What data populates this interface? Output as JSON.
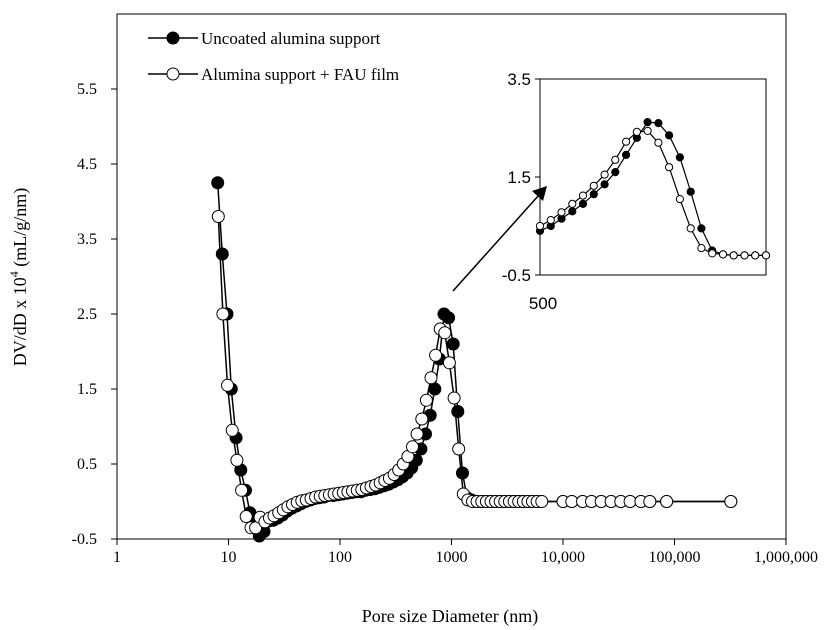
{
  "chart_data": {
    "type": "scatter",
    "title": "",
    "xlabel": "Pore size Diameter (nm)",
    "ylabel_main": "DV/dD x 10",
    "ylabel_sup": "4",
    "ylabel_unit": " (mL/g/nm)",
    "x_scale": "log",
    "xlim": [
      1,
      1000000
    ],
    "ylim": [
      -0.5,
      6.5
    ],
    "x_ticks": [
      1,
      10,
      100,
      1000,
      10000,
      100000,
      1000000
    ],
    "x_tick_labels": [
      "1",
      "10",
      "100",
      "1000",
      "10,000",
      "100,000",
      "1,000,000"
    ],
    "y_ticks": [
      -0.5,
      0.5,
      1.5,
      2.5,
      3.5,
      4.5,
      5.5
    ],
    "y_tick_labels": [
      "-0.5",
      "0.5",
      "1.5",
      "2.5",
      "3.5",
      "4.5",
      "5.5"
    ],
    "grid": false,
    "legend_position": "top-left",
    "series": [
      {
        "name": "Uncoated alumina support",
        "marker": "filled-circle",
        "color": "#000000",
        "x": [
          8.0,
          8.8,
          9.7,
          10.6,
          11.7,
          12.9,
          14.2,
          15.6,
          17.2,
          18.9,
          20.8,
          22.9,
          25.2,
          27.7,
          30.5,
          33.5,
          36.9,
          40.6,
          44.6,
          49.1,
          54.0,
          59.4,
          65.3,
          71.9,
          79.1,
          87.0,
          95.7,
          105.2,
          115.8,
          127.3,
          140.1,
          154.1,
          169.5,
          186.4,
          205.1,
          225.6,
          248.1,
          272.9,
          300.2,
          330.3,
          363.3,
          399.6,
          439.6,
          483.5,
          531.9,
          585.1,
          643.6,
          708.0,
          778.7,
          856.6,
          942.3,
          1036.5,
          1140.1,
          1254.1,
          1379.5,
          1517.5,
          1669.3,
          1836.2,
          2019.8,
          2221.8,
          2444.0,
          2688.4,
          2957.2,
          3252.9,
          3578.2,
          3936.1,
          4329.7,
          4762.6,
          5238.9,
          5762.8,
          6339.0,
          10000,
          12000,
          15000,
          18000,
          22000,
          27000,
          33000,
          40000,
          50000,
          60000,
          85000,
          320000
        ],
        "y": [
          4.25,
          3.3,
          2.5,
          1.5,
          0.85,
          0.42,
          0.15,
          -0.15,
          -0.3,
          -0.46,
          -0.4,
          -0.26,
          -0.25,
          -0.22,
          -0.18,
          -0.13,
          -0.09,
          -0.06,
          -0.03,
          0.0,
          0.02,
          0.04,
          0.05,
          0.06,
          0.08,
          0.08,
          0.09,
          0.1,
          0.11,
          0.12,
          0.13,
          0.13,
          0.15,
          0.16,
          0.17,
          0.19,
          0.21,
          0.23,
          0.26,
          0.29,
          0.33,
          0.38,
          0.45,
          0.55,
          0.7,
          0.9,
          1.15,
          1.5,
          1.9,
          2.5,
          2.45,
          2.1,
          1.2,
          0.38,
          0.05,
          0.02,
          0.0,
          0.0,
          0.0,
          0.0,
          0.0,
          0.0,
          0.0,
          0.0,
          0.0,
          0.0,
          0.0,
          0.0,
          0.0,
          0.0,
          0.0,
          0.0,
          0.0,
          0.0,
          0.0,
          0.0,
          0.0,
          0.0,
          0.0,
          0.0,
          0.0,
          0.0,
          0.0
        ]
      },
      {
        "name": "Alumina support + FAU film",
        "marker": "open-circle",
        "color": "#000000",
        "x": [
          8.1,
          8.9,
          9.8,
          10.8,
          11.9,
          13.1,
          14.4,
          15.9,
          17.5,
          19.2,
          21.2,
          23.3,
          25.6,
          28.2,
          31.0,
          34.1,
          37.5,
          41.3,
          45.4,
          49.9,
          54.9,
          60.4,
          66.5,
          73.1,
          80.4,
          88.5,
          97.3,
          107.0,
          117.7,
          129.5,
          142.5,
          156.7,
          172.4,
          189.6,
          208.6,
          229.4,
          252.4,
          277.6,
          305.4,
          335.9,
          369.5,
          406.5,
          447.1,
          491.8,
          541.0,
          595.1,
          654.6,
          720.1,
          792.1,
          871.3,
          958.4,
          1054.3,
          1159.7,
          1275.7,
          1403.2,
          1543.6,
          1697.9,
          1867.7,
          2054.5,
          2260.0,
          2486.0,
          2734.6,
          3008.0,
          3308.8,
          3639.7,
          4003.7,
          4404.0,
          4844.5,
          5328.9,
          5861.8,
          6448.0,
          10000,
          12000,
          15000,
          18000,
          22000,
          27000,
          33000,
          40000,
          50000,
          60000,
          85000,
          320000
        ],
        "y": [
          3.8,
          2.5,
          1.55,
          0.95,
          0.55,
          0.15,
          -0.2,
          -0.35,
          -0.35,
          -0.21,
          -0.27,
          -0.22,
          -0.19,
          -0.15,
          -0.11,
          -0.07,
          -0.04,
          -0.01,
          0.01,
          0.02,
          0.04,
          0.06,
          0.07,
          0.08,
          0.09,
          0.1,
          0.11,
          0.12,
          0.13,
          0.14,
          0.15,
          0.16,
          0.18,
          0.2,
          0.22,
          0.25,
          0.28,
          0.31,
          0.36,
          0.42,
          0.5,
          0.6,
          0.73,
          0.9,
          1.1,
          1.35,
          1.65,
          1.95,
          2.3,
          2.25,
          1.85,
          1.38,
          0.7,
          0.1,
          0.02,
          0.0,
          0.0,
          0.0,
          0.0,
          0.0,
          0.0,
          0.0,
          0.0,
          0.0,
          0.0,
          0.0,
          0.0,
          0.0,
          0.0,
          0.0,
          0.0,
          0.0,
          0.0,
          0.0,
          0.0,
          0.0,
          0.0,
          0.0,
          0.0,
          0.0,
          0.0,
          0.0,
          0.0
        ]
      }
    ],
    "inset": {
      "x_tick_labels": [
        "500"
      ],
      "y_ticks": [
        -0.5,
        1.5,
        3.5
      ],
      "y_tick_labels": [
        "-0.5",
        "1.5",
        "3.5"
      ],
      "ylim": [
        -0.5,
        3.5
      ],
      "series": [
        {
          "name": "Uncoated alumina support",
          "marker": "filled-circle",
          "y": [
            0.4,
            0.5,
            0.65,
            0.8,
            0.95,
            1.15,
            1.35,
            1.6,
            1.95,
            2.3,
            2.62,
            2.6,
            2.35,
            1.9,
            1.2,
            0.45,
            0.0,
            -0.08,
            -0.1,
            -0.1,
            -0.1,
            -0.1
          ]
        },
        {
          "name": "Alumina support + FAU film",
          "marker": "open-circle",
          "y": [
            0.5,
            0.62,
            0.78,
            0.95,
            1.12,
            1.32,
            1.55,
            1.85,
            2.22,
            2.42,
            2.44,
            2.2,
            1.7,
            1.05,
            0.45,
            0.05,
            -0.06,
            -0.08,
            -0.1,
            -0.1,
            -0.1,
            -0.1
          ]
        }
      ]
    }
  }
}
